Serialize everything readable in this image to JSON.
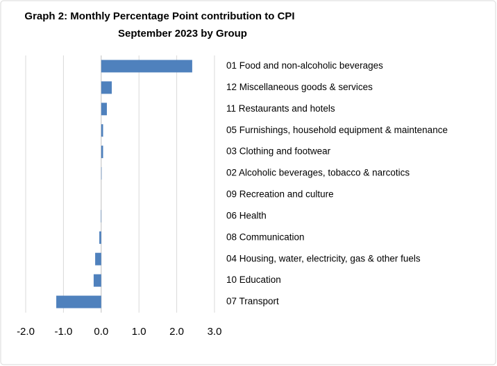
{
  "chart_data": {
    "type": "hbar",
    "title": [
      "Graph 2: Monthly Percentage Point contribution to CPI",
      "September 2023 by  Group"
    ],
    "categories": [
      "01 Food and non-alcoholic beverages",
      "12 Miscellaneous goods & services",
      "11 Restaurants and hotels",
      "05 Furnishings, household equipment & maintenance",
      "03 Clothing and footwear",
      "02 Alcoholic beverages, tobacco & narcotics",
      "09 Recreation and culture",
      "06 Health",
      "08 Communication",
      "04 Housing, water, electricity, gas & other fuels",
      "10 Education",
      "07 Transport"
    ],
    "values": [
      2.41,
      0.28,
      0.15,
      0.05,
      0.05,
      0.01,
      0.0,
      -0.01,
      -0.05,
      -0.16,
      -0.2,
      -1.19
    ],
    "color": "#4f81bd",
    "xlim": [
      -2.0,
      3.0
    ],
    "xticks": [
      {
        "value": -2,
        "label": "-2.0"
      },
      {
        "value": -1,
        "label": "-1.0"
      },
      {
        "value": 0,
        "label": "0.0"
      },
      {
        "value": 1,
        "label": "1.0"
      },
      {
        "value": 2,
        "label": "2.0"
      },
      {
        "value": 3,
        "label": "3.0"
      }
    ],
    "grid": true
  }
}
